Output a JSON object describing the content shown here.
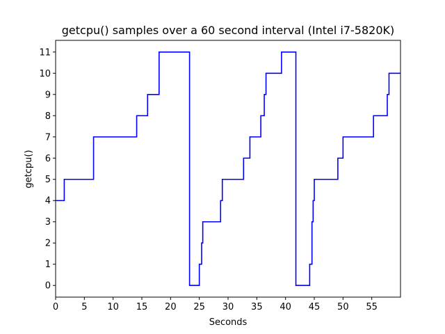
{
  "chart_data": {
    "type": "line",
    "title": "getcpu() samples over a 60 second interval (Intel i7-5820K)",
    "xlabel": "Seconds",
    "ylabel": "getcpu()",
    "xlim": [
      0,
      60
    ],
    "ylim": [
      -0.55,
      11.55
    ],
    "x_ticks": [
      0,
      5,
      10,
      15,
      20,
      25,
      30,
      35,
      40,
      45,
      50,
      55
    ],
    "y_ticks": [
      0,
      1,
      2,
      3,
      4,
      5,
      6,
      7,
      8,
      9,
      10,
      11
    ],
    "grid": false,
    "legend": "none",
    "line_color": "#0000ff",
    "series": [
      {
        "step": "post",
        "x": [
          0,
          1.5,
          6.6,
          14.1,
          16.0,
          18.0,
          23.3,
          25.0,
          25.4,
          25.6,
          28.7,
          29.0,
          32.7,
          33.8,
          35.7,
          36.3,
          36.6,
          39.3,
          41.8,
          44.2,
          44.6,
          44.8,
          45.0,
          49.1,
          50.0,
          55.3,
          57.7,
          58.0,
          60.0
        ],
        "y": [
          4,
          5,
          7,
          8,
          9,
          11,
          0,
          1,
          2,
          3,
          4,
          5,
          6,
          7,
          8,
          9,
          10,
          11,
          0,
          1,
          3,
          4,
          5,
          6,
          7,
          8,
          9,
          10,
          10
        ]
      }
    ]
  }
}
